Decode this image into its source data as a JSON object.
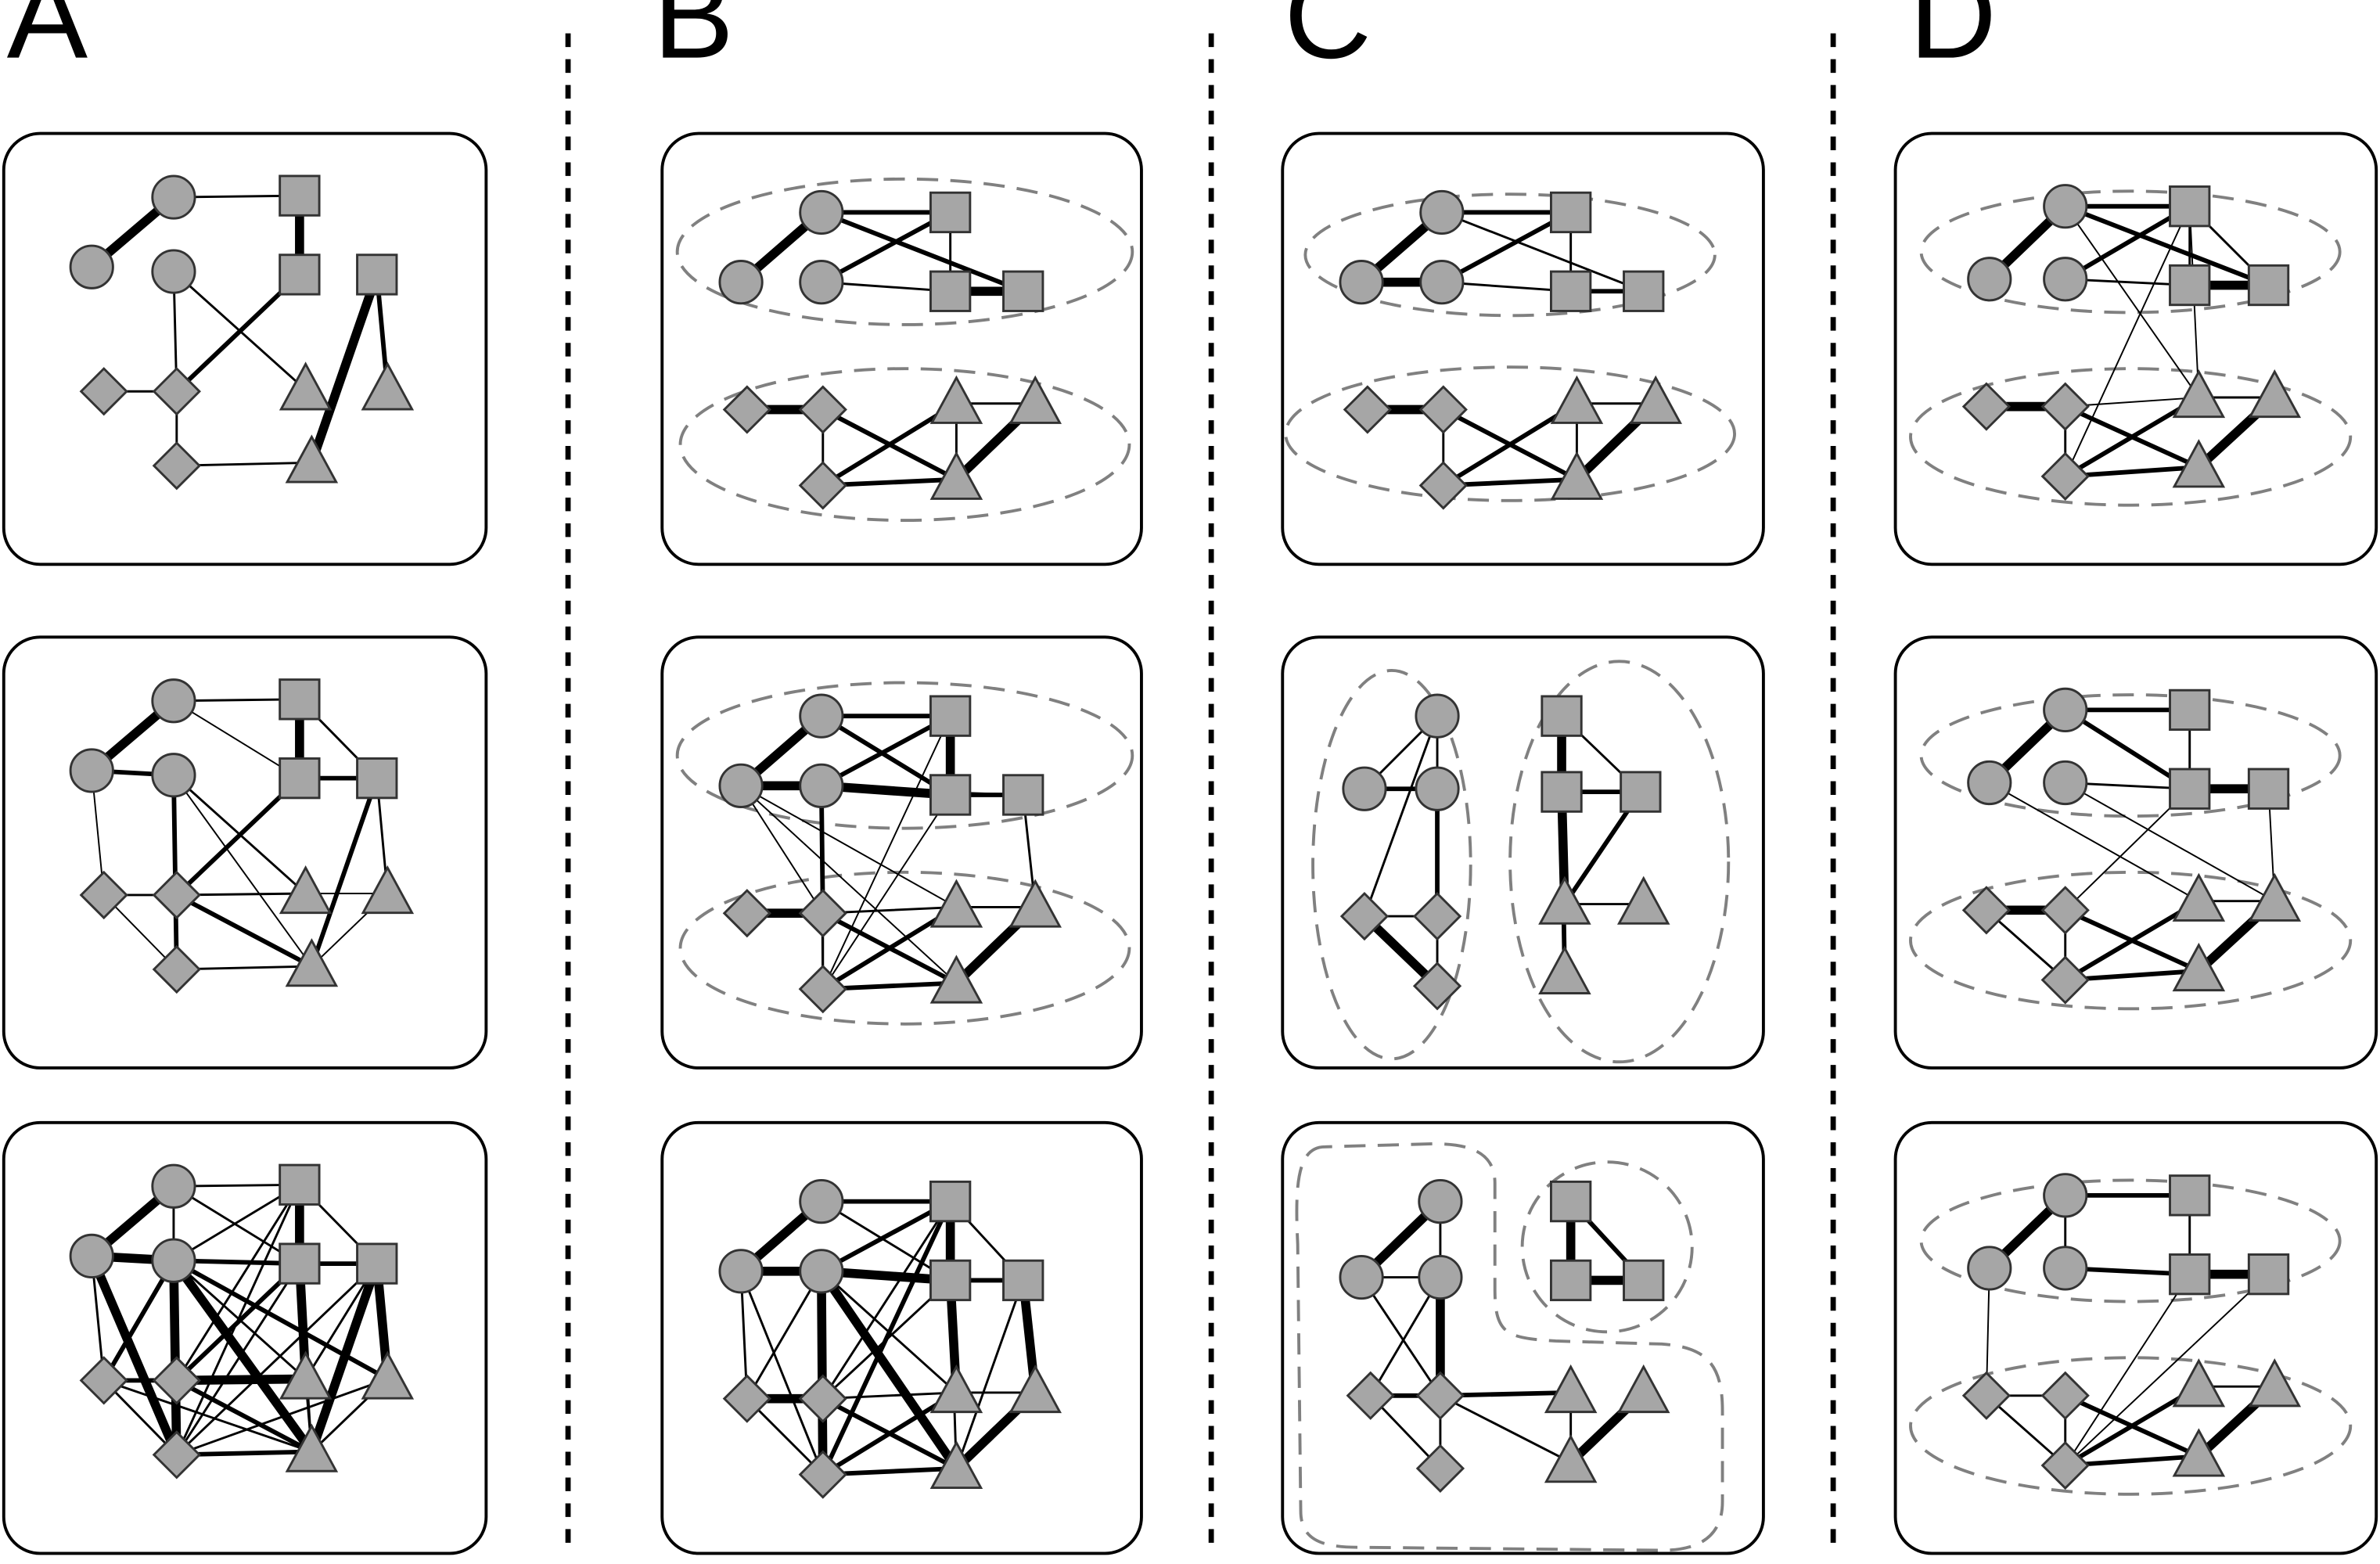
{
  "columns": [
    {
      "label": "A"
    },
    {
      "label": "B"
    },
    {
      "label": "C"
    },
    {
      "label": "D"
    }
  ],
  "colors": {
    "node_fill": "#a6a6a6",
    "node_stroke": "#333333",
    "edge": "#000000",
    "group_outline": "#808080",
    "panel_stroke": "#000000",
    "divider": "#000000"
  },
  "node_types": [
    "circle",
    "square",
    "diamond",
    "triangle"
  ],
  "panels": [
    {
      "column": "A",
      "row": 1,
      "groups": 0
    },
    {
      "column": "A",
      "row": 2,
      "groups": 0
    },
    {
      "column": "A",
      "row": 3,
      "groups": 0
    },
    {
      "column": "B",
      "row": 1,
      "groups": 2
    },
    {
      "column": "B",
      "row": 2,
      "groups": 2
    },
    {
      "column": "B",
      "row": 3,
      "groups": 0
    },
    {
      "column": "C",
      "row": 1,
      "groups": 2
    },
    {
      "column": "C",
      "row": 2,
      "groups": 2
    },
    {
      "column": "C",
      "row": 3,
      "groups": 2
    },
    {
      "column": "D",
      "row": 1,
      "groups": 2
    },
    {
      "column": "D",
      "row": 2,
      "groups": 2
    },
    {
      "column": "D",
      "row": 3,
      "groups": 2
    }
  ]
}
